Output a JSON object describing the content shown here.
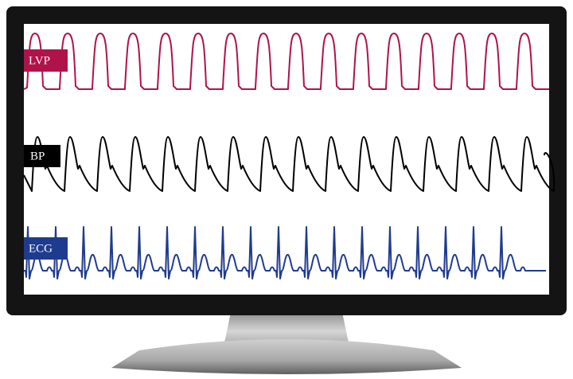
{
  "traces": [
    {
      "label": "LVP"
    },
    {
      "label": "BP"
    },
    {
      "label": "ECG"
    }
  ]
}
